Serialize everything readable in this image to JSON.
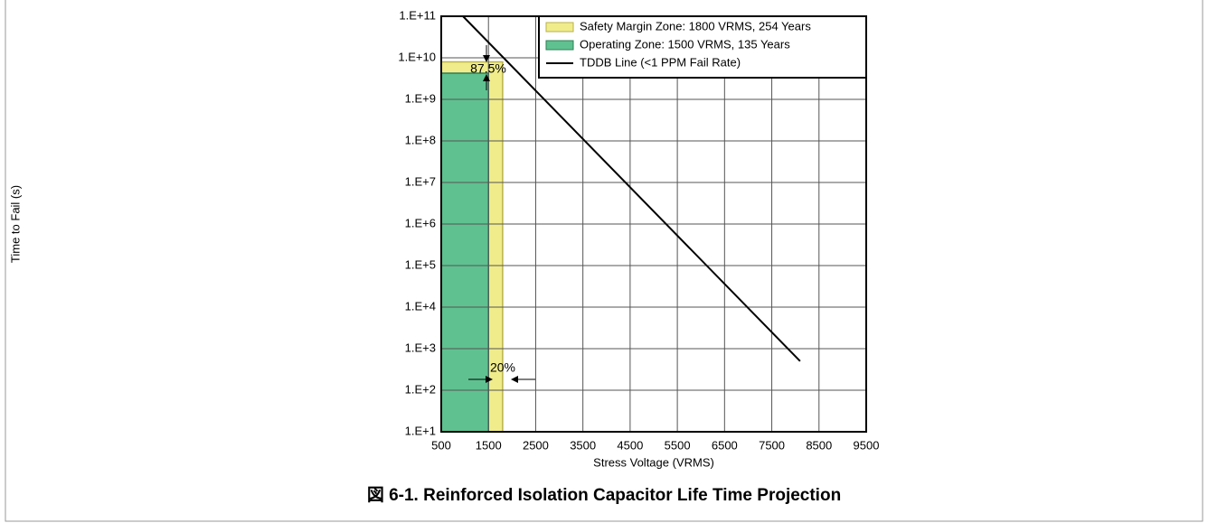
{
  "chart_data": {
    "type": "line",
    "caption": "図 6-1. Reinforced Isolation Capacitor Life Time Projection",
    "x_label": "Stress Voltage (VRMS)",
    "y_label": "Time to Fail (s)",
    "log_y": true,
    "grid": true,
    "legend": "top-right",
    "xlim": [
      500,
      9500
    ],
    "xticks": [
      500,
      1500,
      2500,
      3500,
      4500,
      5500,
      6500,
      7500,
      8500,
      9500
    ],
    "ylim": [
      10,
      100000000000
    ],
    "yticks": [
      {
        "value": 10,
        "label": "1.E+1"
      },
      {
        "value": 100,
        "label": "1.E+2"
      },
      {
        "value": 1000,
        "label": "1.E+3"
      },
      {
        "value": 10000,
        "label": "1.E+4"
      },
      {
        "value": 100000,
        "label": "1.E+5"
      },
      {
        "value": 1000000,
        "label": "1.E+6"
      },
      {
        "value": 10000000,
        "label": "1.E+7"
      },
      {
        "value": 100000000,
        "label": "1.E+8"
      },
      {
        "value": 1000000000,
        "label": "1.E+9"
      },
      {
        "value": 10000000000,
        "label": "1.E+10"
      },
      {
        "value": 100000000000,
        "label": "1.E+11"
      }
    ],
    "series": [
      {
        "name": "Safety Margin Zone: 1800 VRMS, 254 Years",
        "color": "#f0ec8c",
        "style": "area",
        "x": [
          500,
          1800
        ],
        "values": [
          8000000000,
          8000000000
        ]
      },
      {
        "name": "Operating Zone: 1500 VRMS, 135 Years",
        "color": "#5fc190",
        "style": "area",
        "x": [
          500,
          1500
        ],
        "values": [
          4260000000,
          4260000000
        ]
      },
      {
        "name": "TDDB Line (<1 PPM Fail Rate)",
        "color": "#000000",
        "style": "line",
        "x": [
          960,
          8100
        ],
        "values": [
          100000000000,
          500
        ]
      }
    ],
    "annotations": [
      "87.5%",
      "20%"
    ]
  }
}
